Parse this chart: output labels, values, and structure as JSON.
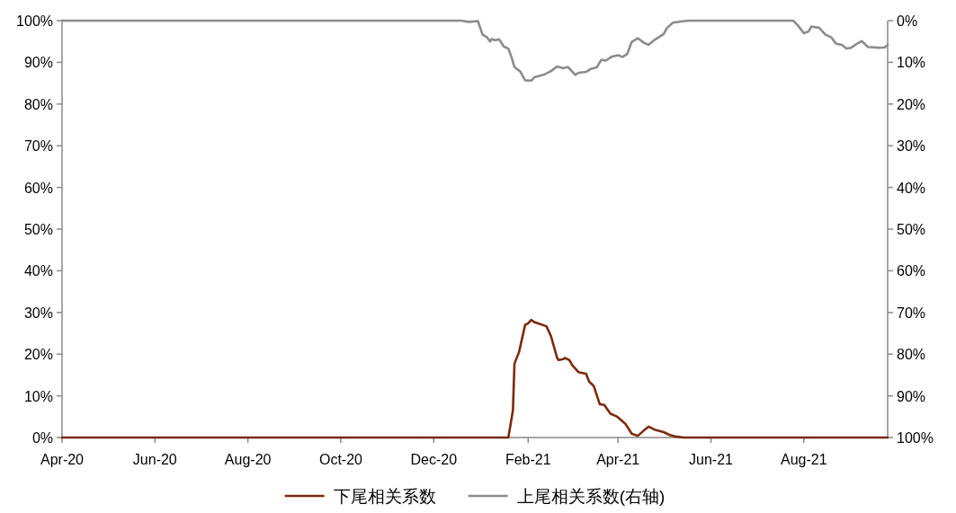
{
  "chart_data": {
    "type": "line",
    "series": [
      {
        "name": "下尾相关系数",
        "color": "#7b2a0c",
        "x": [
          "2020-04-01",
          "2021-01-19",
          "2021-01-22",
          "2021-01-23",
          "2021-01-26",
          "2021-01-30",
          "2021-02-01",
          "2021-02-03",
          "2021-02-05",
          "2021-02-13",
          "2021-02-16",
          "2021-02-20",
          "2021-02-21",
          "2021-02-24",
          "2021-02-25",
          "2021-02-28",
          "2021-03-02",
          "2021-03-06",
          "2021-03-11",
          "2021-03-13",
          "2021-03-16",
          "2021-03-20",
          "2021-03-23",
          "2021-03-27",
          "2021-03-31",
          "2021-04-03",
          "2021-04-06",
          "2021-04-10",
          "2021-04-14",
          "2021-04-18",
          "2021-04-21",
          "2021-04-25",
          "2021-05-01",
          "2021-05-05",
          "2021-05-08",
          "2021-05-14",
          "2021-09-25"
        ],
        "values": [
          0,
          0,
          6.5,
          17.7,
          20.5,
          27.0,
          27.4,
          28.2,
          27.7,
          26.7,
          24.3,
          19.1,
          18.6,
          18.8,
          19.1,
          18.6,
          17.3,
          15.7,
          15.3,
          13.4,
          12.4,
          8.0,
          7.8,
          5.7,
          5.1,
          4.2,
          3.2,
          0.9,
          0.4,
          1.7,
          2.6,
          1.9,
          1.3,
          0.6,
          0.3,
          0,
          0
        ]
      },
      {
        "name": "上尾相关系数(右轴)",
        "color": "#8c8c8c",
        "axis": "y2",
        "x": [
          "2020-04-01",
          "2020-12-19",
          "2020-12-24",
          "2020-12-30",
          "2021-01-02",
          "2021-01-05",
          "2021-01-07",
          "2021-01-08",
          "2021-01-10",
          "2021-01-13",
          "2021-01-16",
          "2021-01-19",
          "2021-01-21",
          "2021-01-23",
          "2021-01-27",
          "2021-01-30",
          "2021-02-03",
          "2021-02-05",
          "2021-02-11",
          "2021-02-16",
          "2021-02-20",
          "2021-02-24",
          "2021-02-27",
          "2021-03-04",
          "2021-03-06",
          "2021-03-11",
          "2021-03-14",
          "2021-03-18",
          "2021-03-21",
          "2021-03-24",
          "2021-03-28",
          "2021-04-01",
          "2021-04-04",
          "2021-04-07",
          "2021-04-10",
          "2021-04-14",
          "2021-04-18",
          "2021-04-21",
          "2021-04-25",
          "2021-05-01",
          "2021-05-03",
          "2021-05-07",
          "2021-05-14",
          "2021-05-18",
          "2021-07-25",
          "2021-07-28",
          "2021-08-01",
          "2021-08-04",
          "2021-08-06",
          "2021-08-11",
          "2021-08-15",
          "2021-08-19",
          "2021-08-22",
          "2021-08-26",
          "2021-08-29",
          "2021-09-01",
          "2021-09-05",
          "2021-09-08",
          "2021-09-12",
          "2021-09-19",
          "2021-09-23",
          "2021-09-25"
        ],
        "values": [
          0,
          0,
          0.3,
          0.1,
          3.3,
          4.0,
          5.0,
          4.4,
          4.7,
          4.5,
          6.2,
          6.7,
          8.7,
          11.1,
          12.3,
          14.3,
          14.4,
          13.6,
          13.0,
          12.1,
          11.0,
          11.4,
          11.1,
          13.0,
          12.5,
          12.3,
          11.6,
          11.2,
          9.4,
          9.6,
          8.6,
          8.3,
          8.7,
          8.0,
          5.1,
          4.2,
          5.3,
          5.8,
          4.6,
          3.2,
          1.8,
          0.5,
          0.1,
          0,
          0,
          1.1,
          3.0,
          2.6,
          1.4,
          1.7,
          3.3,
          4.0,
          5.5,
          5.8,
          6.7,
          6.5,
          5.5,
          4.9,
          6.3,
          6.5,
          6.4,
          5.8
        ]
      }
    ],
    "xlim": [
      "2020-04-01",
      "2021-09-25"
    ],
    "xticks": [
      {
        "value": "2020-04-01",
        "label": "Apr-20"
      },
      {
        "value": "2020-06-01",
        "label": "Jun-20"
      },
      {
        "value": "2020-08-01",
        "label": "Aug-20"
      },
      {
        "value": "2020-10-01",
        "label": "Oct-20"
      },
      {
        "value": "2020-12-01",
        "label": "Dec-20"
      },
      {
        "value": "2021-02-01",
        "label": "Feb-21"
      },
      {
        "value": "2021-04-01",
        "label": "Apr-21"
      },
      {
        "value": "2021-06-01",
        "label": "Jun-21"
      },
      {
        "value": "2021-08-01",
        "label": "Aug-21"
      }
    ],
    "ylim": [
      0,
      100
    ],
    "yticks": [
      {
        "value": 0,
        "label": "0%"
      },
      {
        "value": 10,
        "label": "10%"
      },
      {
        "value": 20,
        "label": "20%"
      },
      {
        "value": 30,
        "label": "30%"
      },
      {
        "value": 40,
        "label": "40%"
      },
      {
        "value": 50,
        "label": "50%"
      },
      {
        "value": 60,
        "label": "60%"
      },
      {
        "value": 70,
        "label": "70%"
      },
      {
        "value": 80,
        "label": "80%"
      },
      {
        "value": 90,
        "label": "90%"
      },
      {
        "value": 100,
        "label": "100%"
      }
    ],
    "y2lim": [
      100,
      0
    ],
    "y2ticks": [
      {
        "value": 0,
        "label": "0%"
      },
      {
        "value": 10,
        "label": "10%"
      },
      {
        "value": 20,
        "label": "20%"
      },
      {
        "value": 30,
        "label": "30%"
      },
      {
        "value": 40,
        "label": "40%"
      },
      {
        "value": 50,
        "label": "50%"
      },
      {
        "value": 60,
        "label": "60%"
      },
      {
        "value": 70,
        "label": "70%"
      },
      {
        "value": 80,
        "label": "80%"
      },
      {
        "value": 90,
        "label": "90%"
      },
      {
        "value": 100,
        "label": "100%"
      }
    ],
    "legend": "bottom",
    "line_style": "solid"
  }
}
